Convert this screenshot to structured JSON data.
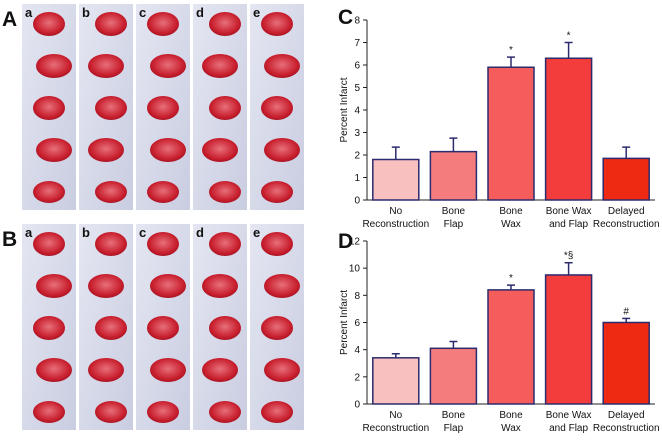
{
  "panels": [
    {
      "label": "A",
      "columns": [
        "a",
        "b",
        "c",
        "d",
        "e"
      ]
    },
    {
      "label": "B",
      "columns": [
        "a",
        "b",
        "c",
        "d",
        "e"
      ]
    }
  ],
  "chart_data": [
    {
      "type": "bar",
      "panel_label": "C",
      "y_label": "Percent Infarct",
      "categories": [
        [
          "No",
          "Reconstruction"
        ],
        [
          "Bone",
          "Flap"
        ],
        [
          "Bone",
          "Wax"
        ],
        [
          "Bone Wax",
          "and  Flap"
        ],
        [
          "Delayed",
          "Reconstruction"
        ]
      ],
      "values": [
        1.8,
        2.15,
        5.9,
        6.3,
        1.85
      ],
      "errors": [
        0.55,
        0.6,
        0.45,
        0.7,
        0.5
      ],
      "markers": [
        null,
        null,
        "*",
        "*",
        null
      ],
      "colors": [
        "#f9c0c0",
        "#f47c7c",
        "#f55c5c",
        "#f33c3c",
        "#ee2a12"
      ],
      "edgecolor": "#2b2b6e",
      "ylim": [
        0,
        8
      ],
      "yticks": [
        0,
        1,
        2,
        3,
        4,
        5,
        6,
        7,
        8
      ]
    },
    {
      "type": "bar",
      "panel_label": "D",
      "y_label": "Percent Infarct",
      "categories": [
        [
          "No",
          "Reconstruction"
        ],
        [
          "Bone",
          "Flap"
        ],
        [
          "Bone",
          "Wax"
        ],
        [
          "Bone Wax",
          "and  Flap"
        ],
        [
          "Delayed",
          "Reconstruction"
        ]
      ],
      "values": [
        3.4,
        4.1,
        8.4,
        9.5,
        6.0
      ],
      "errors": [
        0.3,
        0.5,
        0.35,
        0.9,
        0.3
      ],
      "markers": [
        null,
        null,
        "*",
        "*§",
        "#"
      ],
      "colors": [
        "#f9c0c0",
        "#f47c7c",
        "#f55c5c",
        "#f33c3c",
        "#ee2a12"
      ],
      "edgecolor": "#2b2b6e",
      "ylim": [
        0,
        12
      ],
      "yticks": [
        0,
        2,
        4,
        6,
        8,
        10,
        12
      ]
    }
  ]
}
